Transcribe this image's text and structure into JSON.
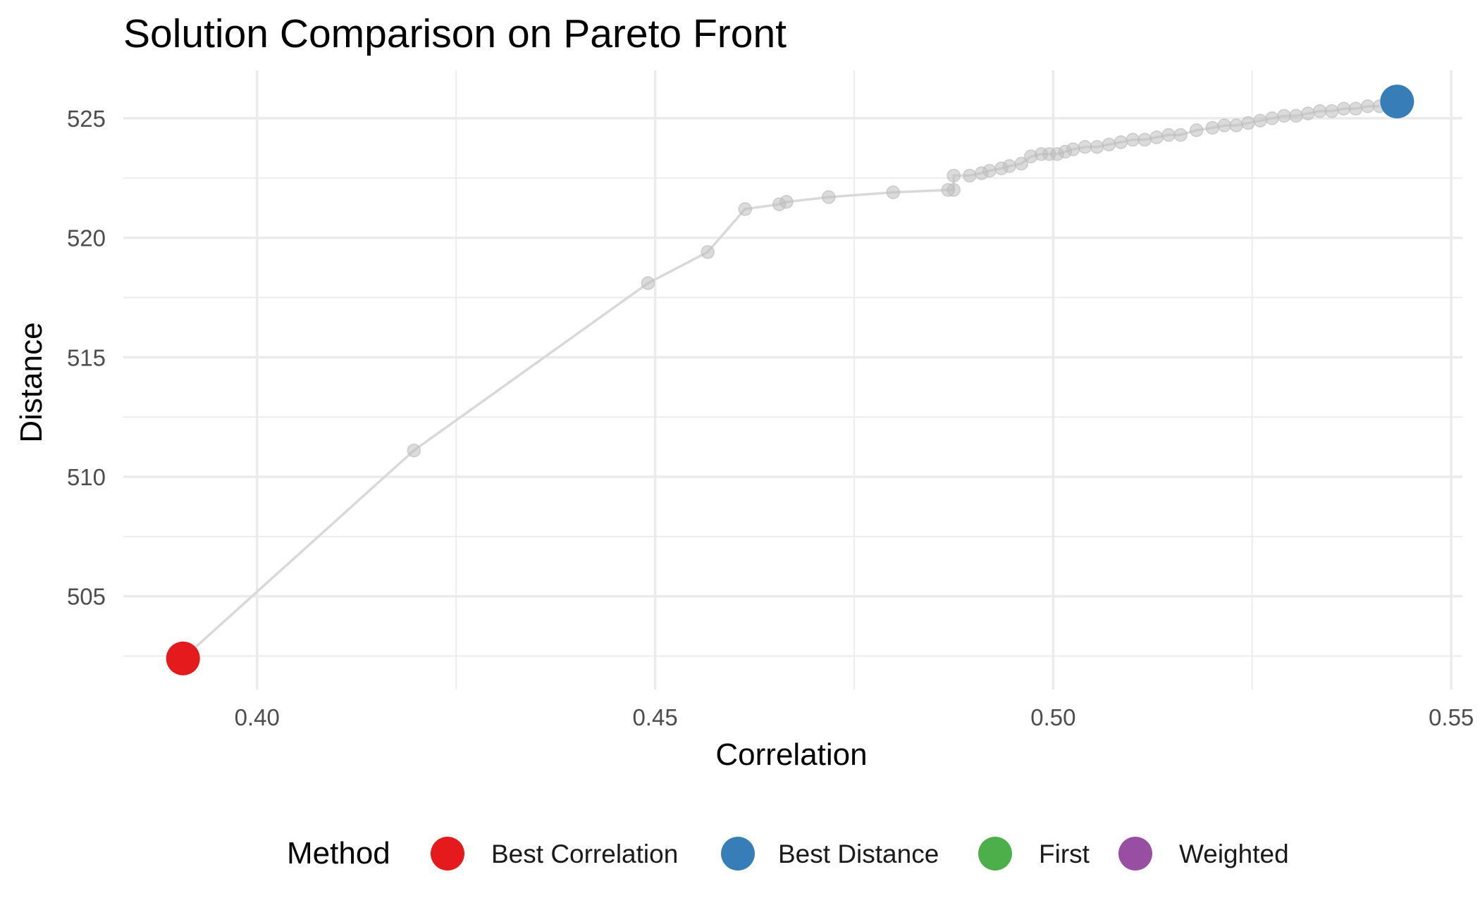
{
  "chart_data": {
    "type": "scatter",
    "title": "Solution Comparison on Pareto Front",
    "xlabel": "Correlation",
    "ylabel": "Distance",
    "xlim": [
      0.3832,
      0.5514
    ],
    "ylim": [
      501.1,
      527.0
    ],
    "x_ticks": [
      {
        "value": 0.4,
        "label": "0.40"
      },
      {
        "value": 0.45,
        "label": "0.45"
      },
      {
        "value": 0.5,
        "label": "0.50"
      },
      {
        "value": 0.55,
        "label": "0.55"
      }
    ],
    "y_ticks": [
      {
        "value": 505,
        "label": "505"
      },
      {
        "value": 510,
        "label": "510"
      },
      {
        "value": 515,
        "label": "515"
      },
      {
        "value": 520,
        "label": "520"
      },
      {
        "value": 525,
        "label": "525"
      }
    ],
    "grid": true,
    "front": {
      "color": "#bebebe",
      "line_color": "#d9d9d9",
      "points": [
        [
          0.3907,
          502.4
        ],
        [
          0.4197,
          511.1
        ],
        [
          0.4491,
          518.1
        ],
        [
          0.4566,
          519.4
        ],
        [
          0.4613,
          521.2
        ],
        [
          0.4656,
          521.4
        ],
        [
          0.4665,
          521.5
        ],
        [
          0.4718,
          521.7
        ],
        [
          0.4799,
          521.9
        ],
        [
          0.4868,
          522.0
        ],
        [
          0.4875,
          522.0
        ],
        [
          0.4875,
          522.6
        ],
        [
          0.4895,
          522.6
        ],
        [
          0.491,
          522.7
        ],
        [
          0.492,
          522.8
        ],
        [
          0.4935,
          522.9
        ],
        [
          0.4945,
          523.0
        ],
        [
          0.496,
          523.1
        ],
        [
          0.4972,
          523.4
        ],
        [
          0.4985,
          523.5
        ],
        [
          0.4995,
          523.5
        ],
        [
          0.5005,
          523.5
        ],
        [
          0.5015,
          523.6
        ],
        [
          0.5025,
          523.7
        ],
        [
          0.504,
          523.8
        ],
        [
          0.5055,
          523.8
        ],
        [
          0.507,
          523.9
        ],
        [
          0.5085,
          524.0
        ],
        [
          0.51,
          524.1
        ],
        [
          0.5115,
          524.1
        ],
        [
          0.513,
          524.2
        ],
        [
          0.5145,
          524.3
        ],
        [
          0.516,
          524.3
        ],
        [
          0.518,
          524.5
        ],
        [
          0.52,
          524.6
        ],
        [
          0.5215,
          524.7
        ],
        [
          0.523,
          524.7
        ],
        [
          0.5245,
          524.8
        ],
        [
          0.526,
          524.9
        ],
        [
          0.5275,
          525.0
        ],
        [
          0.529,
          525.1
        ],
        [
          0.5305,
          525.1
        ],
        [
          0.532,
          525.2
        ],
        [
          0.5335,
          525.3
        ],
        [
          0.535,
          525.3
        ],
        [
          0.5365,
          525.4
        ],
        [
          0.538,
          525.4
        ],
        [
          0.5395,
          525.5
        ],
        [
          0.541,
          525.5
        ]
      ]
    },
    "series": [
      {
        "name": "Best Correlation",
        "color": "#e41a1c",
        "points": [
          [
            0.3907,
            502.4
          ]
        ]
      },
      {
        "name": "Best Distance",
        "color": "#377eb8",
        "points": [
          [
            0.5432,
            525.7
          ]
        ]
      },
      {
        "name": "First",
        "color": "#4daf4a",
        "points": []
      },
      {
        "name": "Weighted",
        "color": "#984ea3",
        "points": []
      }
    ],
    "legend": {
      "title": "Method",
      "position": "bottom"
    }
  }
}
